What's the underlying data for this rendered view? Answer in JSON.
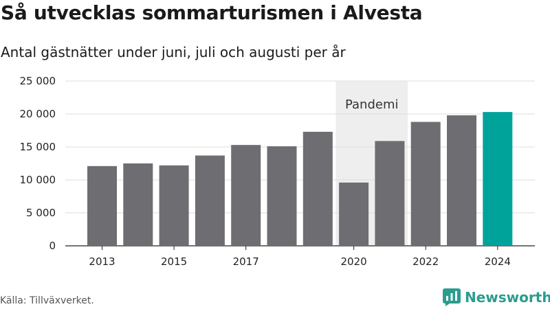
{
  "header": {
    "title": "Så utvecklas sommarturismen i Alvesta",
    "subtitle": "Antal gästnätter under juni, juli och augusti per år"
  },
  "chart_data": {
    "type": "bar",
    "categories": [
      "2013",
      "2014",
      "2015",
      "2016",
      "2017",
      "2018",
      "2019",
      "2020",
      "2021",
      "2022",
      "2023",
      "2024"
    ],
    "values": [
      12100,
      12500,
      12200,
      13700,
      15300,
      15100,
      17300,
      9600,
      15900,
      18800,
      19800,
      20300
    ],
    "x_tick_labels": [
      "2013",
      "",
      "2015",
      "",
      "2017",
      "",
      "",
      "2020",
      "",
      "2022",
      "",
      "2024"
    ],
    "y_ticks": [
      0,
      5000,
      10000,
      15000,
      20000,
      25000
    ],
    "y_tick_labels": [
      "0",
      "5 000",
      "10 000",
      "15 000",
      "20 000",
      "25 000"
    ],
    "ylim": [
      0,
      25000
    ],
    "highlight_band": {
      "label": "Pandemi",
      "from": "2020",
      "to": "2021"
    },
    "colors": {
      "bar": "#6e6d72",
      "highlight": "#00a39a",
      "band": "#eeeeee",
      "grid": "#dddddd"
    },
    "grid": true
  },
  "footer": {
    "source": "Källa: Tillväxverket.",
    "logo_text": "Newsworthy"
  }
}
